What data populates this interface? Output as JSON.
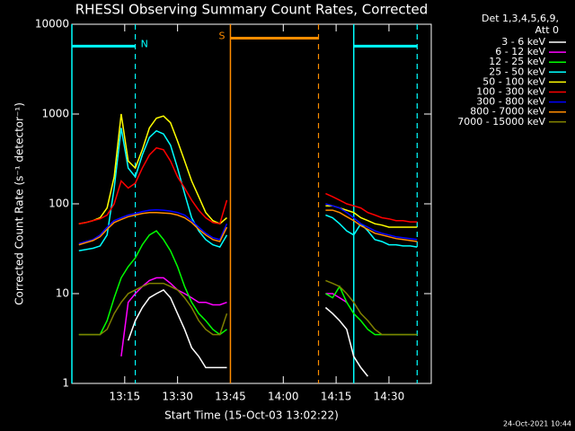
{
  "chart_data": {
    "type": "line",
    "title": "RHESSI Observing Summary Count Rates, Corrected",
    "xlabel": "Start Time (15-Oct-03 13:02:22)",
    "ylabel": "Corrected Count Rate (s⁻¹ detector⁻¹)",
    "legend_header": [
      "Det 1,3,4,5,6,9,",
      "Att 0"
    ],
    "footnote": "24-Oct-2021 10:44",
    "log_y": true,
    "ylim": [
      1,
      10000
    ],
    "yticks": [
      1,
      10,
      100,
      1000,
      10000
    ],
    "xlim": [
      "13:00",
      "14:42"
    ],
    "xticks": [
      "13:15",
      "13:30",
      "13:45",
      "14:00",
      "14:15",
      "14:30"
    ],
    "x": [
      "13:02",
      "13:04",
      "13:06",
      "13:08",
      "13:10",
      "13:12",
      "13:14",
      "13:16",
      "13:18",
      "13:20",
      "13:22",
      "13:24",
      "13:26",
      "13:28",
      "13:30",
      "13:32",
      "13:34",
      "13:36",
      "13:38",
      "13:40",
      "13:42",
      "13:44",
      "13:46",
      "13:48",
      "13:50",
      "13:52",
      "13:54",
      "13:56",
      "13:58",
      "14:00",
      "14:02",
      "14:04",
      "14:06",
      "14:08",
      "14:10",
      "14:12",
      "14:14",
      "14:16",
      "14:18",
      "14:20",
      "14:22",
      "14:24",
      "14:26",
      "14:28",
      "14:30",
      "14:32",
      "14:34",
      "14:36",
      "14:38"
    ],
    "flags": [
      {
        "label": "N",
        "color": "#00ffff",
        "level": 5700,
        "intervals": [
          [
            "13:00",
            "13:18"
          ],
          [
            "14:20",
            "14:38"
          ]
        ]
      },
      {
        "label": "S",
        "color": "#ff8c00",
        "level": 7000,
        "intervals": [
          [
            "13:45",
            "14:10"
          ]
        ]
      }
    ],
    "series": [
      {
        "name": "3 - 6 keV",
        "color": "#ffffff",
        "values": [
          null,
          null,
          null,
          null,
          null,
          null,
          null,
          3,
          5,
          7,
          9,
          10,
          11,
          9,
          6,
          4,
          2.5,
          2,
          1.5,
          1.5,
          1.5,
          1.5,
          null,
          null,
          null,
          null,
          null,
          null,
          null,
          null,
          null,
          null,
          null,
          null,
          null,
          7,
          6,
          5,
          4,
          2,
          1.5,
          1.2,
          null,
          null,
          null,
          null,
          null,
          null,
          null
        ]
      },
      {
        "name": "6 - 12 keV",
        "color": "#ff00ff",
        "values": [
          null,
          null,
          null,
          null,
          null,
          null,
          2,
          8,
          10,
          12,
          14,
          15,
          15,
          13,
          11,
          10,
          9,
          8,
          8,
          7.5,
          7.5,
          8,
          null,
          null,
          null,
          null,
          null,
          null,
          null,
          null,
          null,
          null,
          null,
          null,
          null,
          10,
          10,
          9,
          8,
          null,
          null,
          null,
          null,
          null,
          null,
          null,
          null,
          null,
          null
        ]
      },
      {
        "name": "12 - 25 keV",
        "color": "#00ff00",
        "values": [
          3.5,
          3.5,
          3.5,
          3.5,
          5,
          9,
          15,
          20,
          25,
          35,
          45,
          50,
          40,
          30,
          20,
          12,
          8,
          6,
          5,
          4,
          3.5,
          4,
          null,
          null,
          null,
          null,
          null,
          null,
          null,
          null,
          null,
          null,
          null,
          null,
          null,
          10,
          9,
          12,
          8,
          6,
          5,
          4,
          3.5,
          3.5,
          3.5,
          3.5,
          3.5,
          3.5,
          3.5
        ]
      },
      {
        "name": "25 - 50 keV",
        "color": "#00ffff",
        "values": [
          30,
          31,
          32,
          34,
          45,
          150,
          700,
          250,
          200,
          350,
          550,
          650,
          600,
          450,
          250,
          130,
          70,
          50,
          40,
          35,
          33,
          45,
          null,
          null,
          null,
          null,
          null,
          null,
          null,
          null,
          null,
          null,
          null,
          null,
          null,
          75,
          70,
          60,
          50,
          45,
          60,
          50,
          40,
          38,
          35,
          35,
          34,
          34,
          33
        ]
      },
      {
        "name": "50 - 100 keV",
        "color": "#ffff00",
        "values": [
          60,
          62,
          65,
          70,
          90,
          200,
          1000,
          300,
          250,
          400,
          700,
          900,
          950,
          800,
          500,
          300,
          180,
          120,
          80,
          65,
          60,
          70,
          null,
          null,
          null,
          null,
          null,
          null,
          null,
          null,
          null,
          null,
          null,
          null,
          null,
          95,
          95,
          90,
          85,
          80,
          70,
          65,
          60,
          58,
          55,
          55,
          55,
          55,
          55
        ]
      },
      {
        "name": "100 - 300 keV",
        "color": "#ff0000",
        "values": [
          60,
          62,
          65,
          68,
          75,
          100,
          180,
          150,
          170,
          250,
          350,
          420,
          400,
          300,
          200,
          150,
          110,
          85,
          70,
          62,
          60,
          110,
          null,
          null,
          null,
          null,
          null,
          null,
          null,
          null,
          null,
          null,
          null,
          null,
          null,
          130,
          120,
          110,
          100,
          95,
          90,
          80,
          75,
          70,
          68,
          65,
          65,
          63,
          63
        ]
      },
      {
        "name": "300 - 800 keV",
        "color": "#0000ff",
        "values": [
          36,
          38,
          40,
          45,
          55,
          65,
          70,
          75,
          78,
          82,
          85,
          86,
          85,
          83,
          80,
          75,
          65,
          55,
          47,
          42,
          40,
          60,
          null,
          null,
          null,
          null,
          null,
          null,
          null,
          null,
          null,
          null,
          null,
          null,
          null,
          100,
          95,
          90,
          80,
          70,
          60,
          55,
          50,
          47,
          45,
          43,
          42,
          41,
          40
        ]
      },
      {
        "name": "800 - 7000 keV",
        "color": "#ff8c00",
        "values": [
          35,
          37,
          39,
          43,
          52,
          62,
          67,
          72,
          75,
          78,
          80,
          80,
          79,
          78,
          75,
          70,
          62,
          52,
          45,
          40,
          38,
          55,
          null,
          null,
          null,
          null,
          null,
          null,
          null,
          null,
          null,
          null,
          null,
          null,
          null,
          85,
          85,
          80,
          72,
          65,
          57,
          52,
          47,
          45,
          43,
          41,
          40,
          39,
          38
        ]
      },
      {
        "name": "7000 - 15000 keV",
        "color": "#808000",
        "values": [
          3.5,
          3.5,
          3.5,
          3.5,
          4,
          6,
          8,
          10,
          11,
          12,
          13,
          13,
          13,
          12,
          11,
          9,
          7,
          5,
          4,
          3.5,
          3.5,
          6,
          null,
          null,
          null,
          null,
          null,
          null,
          null,
          null,
          null,
          null,
          null,
          null,
          null,
          14,
          13,
          12,
          10,
          8,
          6,
          5,
          4,
          3.5,
          3.5,
          3.5,
          3.5,
          3.5,
          3.5
        ]
      }
    ]
  }
}
